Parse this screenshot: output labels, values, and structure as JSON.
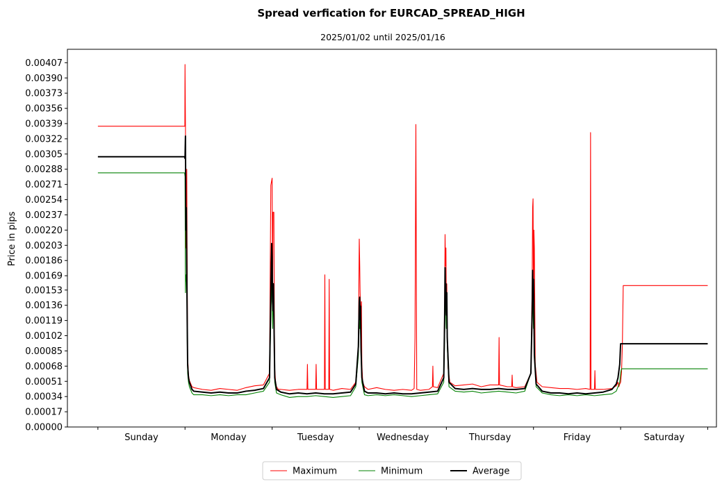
{
  "chart_data": {
    "type": "line",
    "title": "Spread verfication for EURCAD_SPREAD_HIGH",
    "subtitle": "2025/01/02 until 2025/01/16",
    "xlabel": "",
    "ylabel": "Price in pips",
    "ylim": [
      0,
      0.00422
    ],
    "xlim": [
      -0.35,
      7.1
    ],
    "y_ticks": [
      "0.00000",
      "0.00017",
      "0.00034",
      "0.00051",
      "0.00068",
      "0.00085",
      "0.00102",
      "0.00119",
      "0.00136",
      "0.00153",
      "0.00169",
      "0.00186",
      "0.00203",
      "0.00220",
      "0.00237",
      "0.00254",
      "0.00271",
      "0.00288",
      "0.00305",
      "0.00322",
      "0.00339",
      "0.00356",
      "0.00373",
      "0.00390",
      "0.00407"
    ],
    "x_ticks": [
      0,
      1,
      2,
      3,
      4,
      5,
      6,
      7
    ],
    "categories": [
      "Sunday",
      "Monday",
      "Tuesday",
      "Wednesday",
      "Thursday",
      "Friday",
      "Saturday"
    ],
    "grid": false,
    "legend": {
      "placement": "bottom-center",
      "columns": 3
    },
    "series": [
      {
        "name": "Maximum",
        "color": "#ff0000",
        "x": [
          0.0,
          0.995,
          0.998,
          1.0,
          1.005,
          1.01,
          1.02,
          1.025,
          1.03,
          1.04,
          1.05,
          1.08,
          1.1,
          1.2,
          1.3,
          1.4,
          1.5,
          1.6,
          1.7,
          1.8,
          1.9,
          1.97,
          1.985,
          2.0,
          2.005,
          2.01,
          2.02,
          2.025,
          2.03,
          2.04,
          2.05,
          2.07,
          2.1,
          2.2,
          2.3,
          2.4,
          2.405,
          2.41,
          2.5,
          2.505,
          2.51,
          2.6,
          2.605,
          2.61,
          2.65,
          2.655,
          2.66,
          2.7,
          2.8,
          2.9,
          2.96,
          2.99,
          3.0,
          3.005,
          3.01,
          3.02,
          3.025,
          3.03,
          3.04,
          3.06,
          3.1,
          3.2,
          3.3,
          3.4,
          3.5,
          3.6,
          3.63,
          3.64,
          3.65,
          3.66,
          3.7,
          3.8,
          3.84,
          3.845,
          3.85,
          3.9,
          3.97,
          3.98,
          3.985,
          3.99,
          3.995,
          4.0,
          4.005,
          4.01,
          4.02,
          4.04,
          4.1,
          4.2,
          4.3,
          4.4,
          4.5,
          4.6,
          4.605,
          4.61,
          4.7,
          4.75,
          4.755,
          4.76,
          4.8,
          4.9,
          4.97,
          4.985,
          4.99,
          4.995,
          5.0,
          5.005,
          5.01,
          5.02,
          5.04,
          5.1,
          5.2,
          5.3,
          5.4,
          5.5,
          5.6,
          5.65,
          5.655,
          5.66,
          5.7,
          5.705,
          5.71,
          5.8,
          5.9,
          5.95,
          5.97,
          5.98,
          5.99,
          6.0,
          6.01,
          6.02,
          6.03,
          7.0
        ],
        "y": [
          0.00336,
          0.00336,
          0.00336,
          0.00405,
          0.00336,
          0.002,
          0.00288,
          0.0017,
          0.0008,
          0.00058,
          0.00052,
          0.00045,
          0.00044,
          0.00042,
          0.00041,
          0.00043,
          0.00042,
          0.00041,
          0.00044,
          0.00046,
          0.00047,
          0.0006,
          0.0027,
          0.00278,
          0.0014,
          0.0024,
          0.0024,
          0.0013,
          0.00065,
          0.0005,
          0.00045,
          0.00042,
          0.00042,
          0.00041,
          0.00042,
          0.00042,
          0.0007,
          0.00042,
          0.00042,
          0.0007,
          0.00042,
          0.00042,
          0.0017,
          0.00042,
          0.00042,
          0.00165,
          0.00042,
          0.00041,
          0.00043,
          0.00042,
          0.0005,
          0.0009,
          0.0021,
          0.00184,
          0.0015,
          0.0012,
          0.0014,
          0.0007,
          0.0005,
          0.00045,
          0.00042,
          0.00044,
          0.00042,
          0.00041,
          0.00042,
          0.00041,
          0.00043,
          0.001,
          0.00338,
          0.00042,
          0.00041,
          0.00042,
          0.00045,
          0.00068,
          0.00045,
          0.00044,
          0.0006,
          0.0014,
          0.00215,
          0.0018,
          0.002,
          0.0013,
          0.0016,
          0.001,
          0.00065,
          0.0005,
          0.00046,
          0.00047,
          0.00048,
          0.00045,
          0.00047,
          0.00047,
          0.001,
          0.00047,
          0.00045,
          0.00045,
          0.00058,
          0.00045,
          0.00044,
          0.00045,
          0.0006,
          0.0016,
          0.00245,
          0.00255,
          0.0014,
          0.0022,
          0.002,
          0.0007,
          0.0005,
          0.00045,
          0.00044,
          0.00043,
          0.00043,
          0.00042,
          0.00043,
          0.00042,
          0.00329,
          0.00042,
          0.00042,
          0.00063,
          0.00042,
          0.00042,
          0.00043,
          0.00046,
          0.0005,
          0.00045,
          0.00048,
          0.0005,
          0.0006,
          0.0009,
          0.00158,
          0.00158
        ]
      },
      {
        "name": "Minimum",
        "color": "#008000",
        "x": [
          0.0,
          0.995,
          1.0,
          1.005,
          1.01,
          1.02,
          1.025,
          1.03,
          1.04,
          1.05,
          1.08,
          1.1,
          1.2,
          1.3,
          1.4,
          1.5,
          1.6,
          1.7,
          1.8,
          1.9,
          1.97,
          1.985,
          2.0,
          2.005,
          2.01,
          2.02,
          2.025,
          2.03,
          2.05,
          2.1,
          2.2,
          2.3,
          2.4,
          2.5,
          2.6,
          2.7,
          2.8,
          2.9,
          2.96,
          2.99,
          3.0,
          3.005,
          3.01,
          3.02,
          3.03,
          3.06,
          3.1,
          3.2,
          3.3,
          3.4,
          3.5,
          3.6,
          3.7,
          3.8,
          3.9,
          3.97,
          3.98,
          3.99,
          4.0,
          4.005,
          4.01,
          4.03,
          4.1,
          4.2,
          4.3,
          4.4,
          4.5,
          4.6,
          4.7,
          4.8,
          4.9,
          4.97,
          4.985,
          4.99,
          5.0,
          5.005,
          5.01,
          5.03,
          5.1,
          5.2,
          5.3,
          5.4,
          5.5,
          5.6,
          5.7,
          5.8,
          5.9,
          5.95,
          5.97,
          5.99,
          6.0,
          6.01,
          7.0
        ],
        "y": [
          0.00284,
          0.00284,
          0.0028,
          0.0015,
          0.0017,
          0.0016,
          0.001,
          0.0006,
          0.0005,
          0.00045,
          0.00038,
          0.00036,
          0.00036,
          0.00035,
          0.00036,
          0.00035,
          0.00036,
          0.00036,
          0.00038,
          0.0004,
          0.0005,
          0.0012,
          0.0018,
          0.0011,
          0.0016,
          0.0012,
          0.0008,
          0.0005,
          0.00038,
          0.00036,
          0.00033,
          0.00034,
          0.00034,
          0.00035,
          0.00034,
          0.00033,
          0.00034,
          0.00035,
          0.00045,
          0.0008,
          0.0012,
          0.0011,
          0.0013,
          0.0008,
          0.0005,
          0.00036,
          0.00035,
          0.00036,
          0.00035,
          0.00036,
          0.00035,
          0.00034,
          0.00035,
          0.00036,
          0.00037,
          0.0005,
          0.001,
          0.0015,
          0.0011,
          0.0013,
          0.0009,
          0.00045,
          0.0004,
          0.00039,
          0.0004,
          0.00038,
          0.00039,
          0.0004,
          0.00039,
          0.00038,
          0.0004,
          0.0006,
          0.0012,
          0.0015,
          0.0011,
          0.0014,
          0.0009,
          0.00045,
          0.00038,
          0.00036,
          0.00035,
          0.00036,
          0.00035,
          0.00036,
          0.00035,
          0.00036,
          0.00037,
          0.0004,
          0.00045,
          0.0005,
          0.0006,
          0.00065,
          0.00065
        ]
      },
      {
        "name": "Average",
        "color": "#000000",
        "x": [
          0.0,
          0.995,
          1.0,
          1.005,
          1.01,
          1.015,
          1.02,
          1.025,
          1.03,
          1.04,
          1.05,
          1.08,
          1.1,
          1.2,
          1.3,
          1.4,
          1.5,
          1.6,
          1.7,
          1.8,
          1.9,
          1.97,
          1.985,
          1.995,
          2.0,
          2.005,
          2.01,
          2.015,
          2.02,
          2.025,
          2.03,
          2.05,
          2.1,
          2.2,
          2.3,
          2.4,
          2.5,
          2.6,
          2.7,
          2.8,
          2.9,
          2.96,
          2.99,
          3.0,
          3.005,
          3.01,
          3.015,
          3.02,
          3.03,
          3.06,
          3.1,
          3.2,
          3.3,
          3.4,
          3.5,
          3.6,
          3.7,
          3.8,
          3.9,
          3.97,
          3.98,
          3.985,
          3.99,
          3.995,
          4.0,
          4.005,
          4.01,
          4.03,
          4.1,
          4.2,
          4.3,
          4.4,
          4.5,
          4.6,
          4.7,
          4.8,
          4.9,
          4.97,
          4.985,
          4.99,
          4.995,
          5.0,
          5.005,
          5.01,
          5.03,
          5.1,
          5.2,
          5.3,
          5.4,
          5.5,
          5.6,
          5.7,
          5.8,
          5.9,
          5.95,
          5.97,
          5.99,
          6.0,
          6.01,
          7.0
        ],
        "y": [
          0.00302,
          0.00302,
          0.003,
          0.00325,
          0.0022,
          0.00245,
          0.0018,
          0.0012,
          0.0007,
          0.00055,
          0.0005,
          0.00042,
          0.0004,
          0.00039,
          0.00038,
          0.00039,
          0.00038,
          0.00038,
          0.0004,
          0.00041,
          0.00043,
          0.00055,
          0.0015,
          0.00205,
          0.0019,
          0.0014,
          0.0013,
          0.0016,
          0.00125,
          0.0009,
          0.00055,
          0.00042,
          0.00039,
          0.00037,
          0.00038,
          0.00037,
          0.00038,
          0.00037,
          0.00037,
          0.00038,
          0.00039,
          0.00048,
          0.0009,
          0.0014,
          0.00145,
          0.0012,
          0.00135,
          0.0009,
          0.00055,
          0.0004,
          0.00038,
          0.00038,
          0.00037,
          0.00038,
          0.00037,
          0.00037,
          0.00038,
          0.00039,
          0.0004,
          0.00055,
          0.0012,
          0.00178,
          0.0014,
          0.0016,
          0.00125,
          0.0015,
          0.001,
          0.0005,
          0.00043,
          0.00042,
          0.00043,
          0.00042,
          0.00042,
          0.00043,
          0.00042,
          0.00042,
          0.00043,
          0.0006,
          0.0013,
          0.00175,
          0.0015,
          0.00165,
          0.00125,
          0.0008,
          0.00048,
          0.0004,
          0.00038,
          0.00038,
          0.00037,
          0.00038,
          0.00037,
          0.00038,
          0.00039,
          0.00042,
          0.00048,
          0.00055,
          0.0007,
          0.00093,
          0.00093,
          0.00093
        ]
      }
    ]
  }
}
